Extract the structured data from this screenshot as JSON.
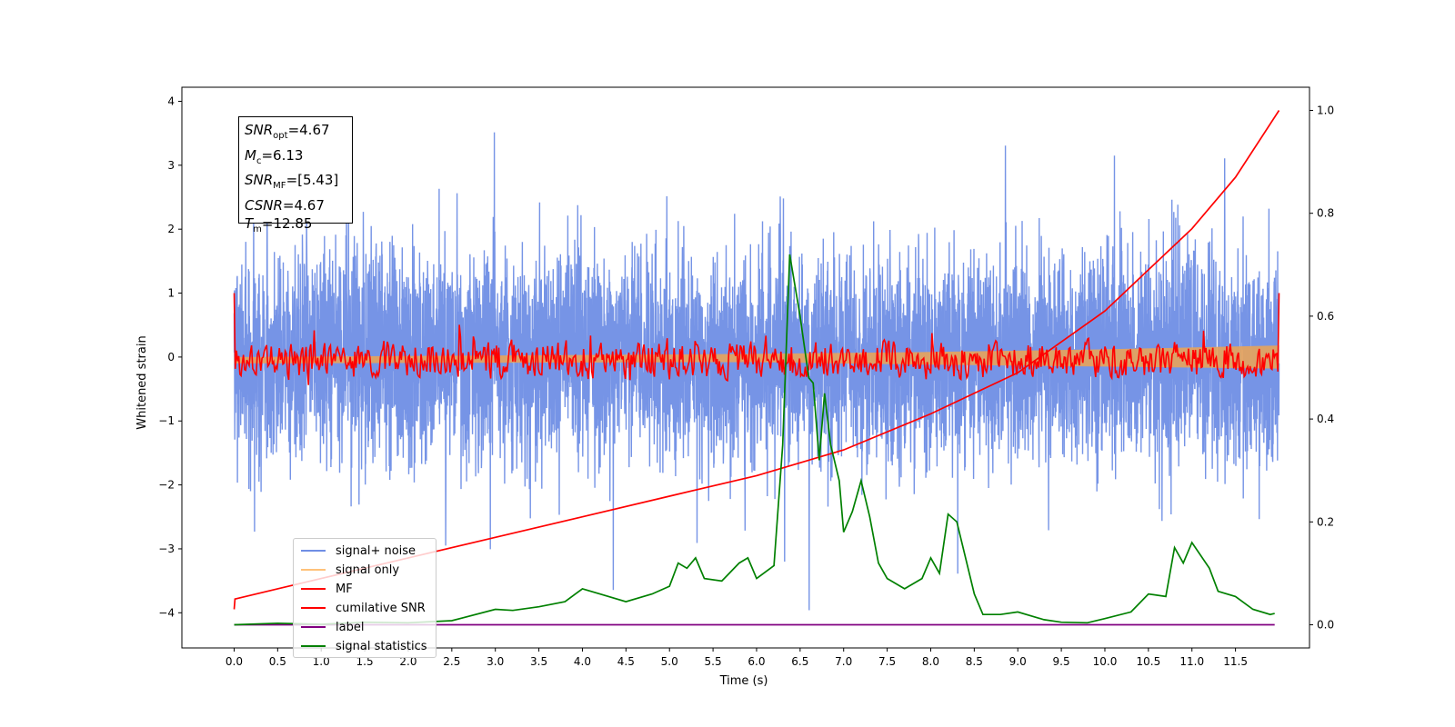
{
  "chart_data": {
    "type": "line",
    "xlabel": "Time (s)",
    "ylabel": "Whitened strain",
    "xlim": [
      -0.6,
      12.35
    ],
    "ylim": [
      -4.55,
      4.22
    ],
    "y2lim": [
      -0.045,
      1.045
    ],
    "xticks": [
      "0.0",
      "0.5",
      "1.0",
      "1.5",
      "2.0",
      "2.5",
      "3.0",
      "3.5",
      "4.0",
      "4.5",
      "5.0",
      "5.5",
      "6.0",
      "6.5",
      "7.0",
      "7.5",
      "8.0",
      "8.5",
      "9.0",
      "9.5",
      "10.0",
      "10.5",
      "11.0",
      "11.5"
    ],
    "yticks": [
      "4",
      "3",
      "2",
      "1",
      "0",
      "−1",
      "−2",
      "−3",
      "−4"
    ],
    "y2ticks": [
      "1.0",
      "0.8",
      "0.6",
      "0.4",
      "0.2",
      "0.0"
    ],
    "annotations": [
      {
        "symbol": "SNR",
        "sub": "opt",
        "value": "=4.67"
      },
      {
        "symbol": "M",
        "sub": "c",
        "value": "=6.13"
      },
      {
        "symbol": "SNR",
        "sub": "MF",
        "value": "=[5.43]"
      },
      {
        "symbol": "CSNR",
        "sub": "",
        "value": "=4.67"
      },
      {
        "symbol": "T",
        "sub": "m",
        "value": "=12.85"
      }
    ],
    "legend": {
      "position": "lower left",
      "entries": [
        {
          "label": "signal+ noise",
          "color": "#6f8ee5"
        },
        {
          "label": "signal only",
          "color": "#ffc27a"
        },
        {
          "label": "MF",
          "color": "#ff0000"
        },
        {
          "label": "cumilative SNR",
          "color": "#ff0000"
        },
        {
          "label": "label",
          "color": "#800080"
        },
        {
          "label": "signal statistics",
          "color": "#008000"
        }
      ]
    },
    "series": [
      {
        "name": "signal+ noise",
        "axis": "left",
        "color": "#6f8ee5",
        "kind": "noise",
        "t_range": [
          0,
          12
        ],
        "amplitude_range": [
          -4.2,
          3.85
        ],
        "samples": 6000,
        "seed": 7
      },
      {
        "name": "signal only",
        "axis": "left",
        "color": "#e8a35a",
        "kind": "band",
        "x": [
          0,
          6,
          8,
          10,
          12
        ],
        "upper": [
          0.0,
          0.05,
          0.08,
          0.12,
          0.18
        ],
        "lower": [
          -0.1,
          -0.08,
          -0.12,
          -0.15,
          -0.18
        ]
      },
      {
        "name": "MF",
        "axis": "left",
        "color": "#ff0000",
        "kind": "oscillating",
        "t_range": [
          0,
          12
        ],
        "start_value": 1.0,
        "end_value": 1.0,
        "baseline": -0.05,
        "amplitude": 0.16,
        "samples": 900,
        "seed": 3
      },
      {
        "name": "cumilative SNR",
        "axis": "right",
        "color": "#ff0000",
        "kind": "line",
        "x": [
          0,
          0.01,
          0.5,
          1,
          2,
          3,
          4,
          5,
          6,
          7,
          8,
          9,
          10,
          10.5,
          11,
          11.5,
          12
        ],
        "y": [
          0.03,
          0.05,
          0.07,
          0.09,
          0.13,
          0.17,
          0.21,
          0.25,
          0.29,
          0.34,
          0.41,
          0.49,
          0.61,
          0.69,
          0.77,
          0.87,
          1.0
        ]
      },
      {
        "name": "label",
        "axis": "right",
        "color": "#800080",
        "kind": "line",
        "x": [
          0,
          11.95
        ],
        "y": [
          0.0,
          0.0
        ]
      },
      {
        "name": "signal statistics",
        "axis": "right",
        "color": "#008000",
        "kind": "line",
        "x": [
          0,
          0.5,
          1,
          1.5,
          2,
          2.5,
          3,
          3.2,
          3.5,
          3.8,
          4.0,
          4.2,
          4.5,
          4.8,
          5.0,
          5.1,
          5.2,
          5.3,
          5.4,
          5.6,
          5.8,
          5.9,
          6.0,
          6.2,
          6.3,
          6.38,
          6.5,
          6.6,
          6.65,
          6.72,
          6.78,
          6.85,
          6.95,
          7.0,
          7.1,
          7.2,
          7.3,
          7.4,
          7.5,
          7.7,
          7.9,
          8.0,
          8.1,
          8.2,
          8.3,
          8.5,
          8.6,
          8.8,
          9.0,
          9.3,
          9.5,
          9.8,
          10.0,
          10.3,
          10.5,
          10.7,
          10.8,
          10.9,
          11.0,
          11.2,
          11.3,
          11.5,
          11.7,
          11.9,
          11.95
        ],
        "y": [
          0.0,
          0.003,
          0.001,
          0.005,
          0.004,
          0.008,
          0.03,
          0.028,
          0.035,
          0.045,
          0.07,
          0.06,
          0.045,
          0.06,
          0.075,
          0.12,
          0.11,
          0.13,
          0.09,
          0.085,
          0.12,
          0.13,
          0.09,
          0.115,
          0.35,
          0.72,
          0.6,
          0.48,
          0.47,
          0.32,
          0.45,
          0.35,
          0.28,
          0.18,
          0.22,
          0.28,
          0.21,
          0.12,
          0.09,
          0.07,
          0.09,
          0.13,
          0.1,
          0.215,
          0.2,
          0.06,
          0.02,
          0.02,
          0.025,
          0.01,
          0.005,
          0.004,
          0.012,
          0.025,
          0.06,
          0.055,
          0.15,
          0.12,
          0.16,
          0.11,
          0.065,
          0.055,
          0.03,
          0.02,
          0.022
        ]
      }
    ]
  }
}
